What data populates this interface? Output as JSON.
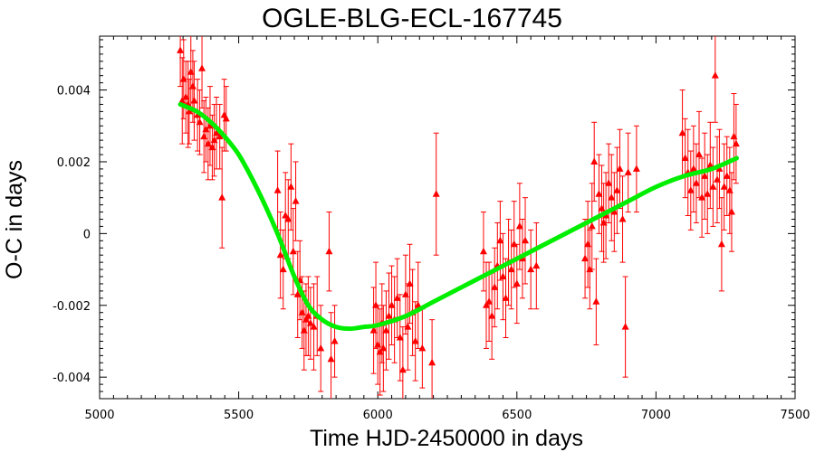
{
  "chart_data": {
    "type": "scatter",
    "title": "OGLE-BLG-ECL-167745",
    "xlabel": "Time HJD-2450000 in days",
    "ylabel": "O-C in days",
    "xlim": [
      5000,
      7500
    ],
    "ylim": [
      -0.0046,
      0.0055
    ],
    "x_ticks": [
      5000,
      5500,
      6000,
      6500,
      7000,
      7500
    ],
    "x_tick_labels": [
      "5000",
      "5500",
      "6000",
      "6500",
      "7000",
      "7500"
    ],
    "y_ticks": [
      0.004,
      0.002,
      0,
      -0.002,
      -0.004
    ],
    "y_tick_labels": [
      "0.004",
      "0.002",
      "0",
      "-0.002",
      "-0.004"
    ],
    "grid": false,
    "series": [
      {
        "kind": "points_with_errorbars",
        "color": "#ff0000",
        "marker": "triangle",
        "points": [
          [
            5290,
            0.0051,
            0.001
          ],
          [
            5297,
            0.0037,
            0.0012
          ],
          [
            5302,
            0.0043,
            0.0011
          ],
          [
            5310,
            0.0038,
            0.001
          ],
          [
            5318,
            0.0036,
            0.0012
          ],
          [
            5322,
            0.0034,
            0.0009
          ],
          [
            5328,
            0.0045,
            0.0011
          ],
          [
            5335,
            0.0041,
            0.001
          ],
          [
            5340,
            0.0037,
            0.0011
          ],
          [
            5352,
            0.0033,
            0.001
          ],
          [
            5360,
            0.0031,
            0.0009
          ],
          [
            5368,
            0.0046,
            0.0011
          ],
          [
            5375,
            0.0027,
            0.001
          ],
          [
            5382,
            0.0029,
            0.0009
          ],
          [
            5390,
            0.0025,
            0.001
          ],
          [
            5397,
            0.003,
            0.0011
          ],
          [
            5405,
            0.0024,
            0.0009
          ],
          [
            5412,
            0.0026,
            0.001
          ],
          [
            5420,
            0.0028,
            0.001
          ],
          [
            5432,
            0.0027,
            0.0009
          ],
          [
            5440,
            0.001,
            0.0014
          ],
          [
            5448,
            0.0033,
            0.001
          ],
          [
            5455,
            0.0032,
            0.0009
          ],
          [
            5640,
            0.0012,
            0.0011
          ],
          [
            5650,
            -0.0006,
            0.0012
          ],
          [
            5660,
            -0.001,
            0.0011
          ],
          [
            5668,
            0.0005,
            0.0012
          ],
          [
            5678,
            0.0004,
            0.0011
          ],
          [
            5688,
            0.0013,
            0.0012
          ],
          [
            5696,
            -0.0005,
            0.0012
          ],
          [
            5705,
            0.0009,
            0.0011
          ],
          [
            5712,
            -0.0017,
            0.0012
          ],
          [
            5720,
            -0.0013,
            0.0011
          ],
          [
            5728,
            -0.0022,
            0.001
          ],
          [
            5735,
            -0.0027,
            0.0011
          ],
          [
            5742,
            -0.0024,
            0.001
          ],
          [
            5750,
            -0.0023,
            0.0011
          ],
          [
            5758,
            -0.0025,
            0.001
          ],
          [
            5770,
            -0.0026,
            0.0012
          ],
          [
            5782,
            -0.0023,
            0.0011
          ],
          [
            5795,
            -0.0032,
            0.0012
          ],
          [
            5825,
            -0.0005,
            0.0011
          ],
          [
            5832,
            -0.0035,
            0.0013
          ],
          [
            5845,
            -0.003,
            0.001
          ],
          [
            5985,
            -0.0027,
            0.0012
          ],
          [
            5993,
            -0.002,
            0.0012
          ],
          [
            6000,
            -0.0031,
            0.0011
          ],
          [
            6008,
            -0.0033,
            0.0012
          ],
          [
            6015,
            -0.0025,
            0.0011
          ],
          [
            6020,
            -0.0032,
            0.0012
          ],
          [
            6030,
            -0.0027,
            0.0011
          ],
          [
            6040,
            -0.0023,
            0.0012
          ],
          [
            6050,
            -0.002,
            0.0011
          ],
          [
            6060,
            -0.0024,
            0.0012
          ],
          [
            6070,
            -0.0018,
            0.0011
          ],
          [
            6080,
            -0.0029,
            0.0012
          ],
          [
            6090,
            -0.0038,
            0.0012
          ],
          [
            6100,
            -0.0017,
            0.0011
          ],
          [
            6108,
            -0.0026,
            0.0012
          ],
          [
            6115,
            -0.0014,
            0.0011
          ],
          [
            6125,
            -0.0022,
            0.0012
          ],
          [
            6135,
            -0.003,
            0.0011
          ],
          [
            6145,
            -0.002,
            0.0012
          ],
          [
            6160,
            -0.0032,
            0.0011
          ],
          [
            6195,
            -0.0036,
            0.0012
          ],
          [
            6210,
            0.0011,
            0.0017
          ],
          [
            6380,
            -0.0005,
            0.0011
          ],
          [
            6390,
            -0.002,
            0.0012
          ],
          [
            6400,
            -0.0019,
            0.0011
          ],
          [
            6410,
            -0.0023,
            0.0012
          ],
          [
            6420,
            -0.0015,
            0.0011
          ],
          [
            6430,
            -0.0009,
            0.0012
          ],
          [
            6440,
            -0.0002,
            0.0011
          ],
          [
            6450,
            -0.0012,
            0.0012
          ],
          [
            6460,
            -0.0018,
            0.0011
          ],
          [
            6470,
            -0.0008,
            0.0012
          ],
          [
            6480,
            -0.001,
            0.0011
          ],
          [
            6490,
            -0.0003,
            0.0012
          ],
          [
            6500,
            -0.0014,
            0.0011
          ],
          [
            6510,
            0.0002,
            0.0012
          ],
          [
            6520,
            -0.0007,
            0.0011
          ],
          [
            6530,
            -0.0002,
            0.0012
          ],
          [
            6550,
            -0.001,
            0.0011
          ],
          [
            6570,
            -0.0009,
            0.0012
          ],
          [
            6745,
            -0.0007,
            0.0011
          ],
          [
            6755,
            -0.0003,
            0.0012
          ],
          [
            6762,
            -0.001,
            0.0011
          ],
          [
            6770,
            0.0002,
            0.0012
          ],
          [
            6778,
            0.002,
            0.0011
          ],
          [
            6785,
            -0.0019,
            0.0012
          ],
          [
            6795,
            0.0011,
            0.0011
          ],
          [
            6805,
            0.0007,
            0.0012
          ],
          [
            6812,
            0.0003,
            0.0011
          ],
          [
            6820,
            0.0005,
            0.0012
          ],
          [
            6830,
            0.0014,
            0.0011
          ],
          [
            6840,
            0.001,
            0.0012
          ],
          [
            6850,
            0.0006,
            0.0011
          ],
          [
            6860,
            0.0012,
            0.0012
          ],
          [
            6870,
            0.0018,
            0.0011
          ],
          [
            6880,
            0.0004,
            0.0012
          ],
          [
            6890,
            -0.0026,
            0.0014
          ],
          [
            6900,
            0.0017,
            0.0011
          ],
          [
            6930,
            0.0018,
            0.0012
          ],
          [
            7095,
            0.0028,
            0.0012
          ],
          [
            7105,
            0.0021,
            0.0011
          ],
          [
            7115,
            0.0017,
            0.0012
          ],
          [
            7125,
            0.0012,
            0.0011
          ],
          [
            7135,
            0.0018,
            0.0012
          ],
          [
            7145,
            0.0014,
            0.0011
          ],
          [
            7155,
            0.0022,
            0.0012
          ],
          [
            7165,
            0.001,
            0.0011
          ],
          [
            7175,
            0.0016,
            0.0012
          ],
          [
            7185,
            0.0011,
            0.0011
          ],
          [
            7195,
            0.0019,
            0.0012
          ],
          [
            7205,
            0.0013,
            0.0011
          ],
          [
            7213,
            0.0044,
            0.0013
          ],
          [
            7220,
            0.0015,
            0.0012
          ],
          [
            7228,
            0.0018,
            0.0011
          ],
          [
            7236,
            -0.0003,
            0.0013
          ],
          [
            7245,
            0.0013,
            0.0012
          ],
          [
            7255,
            0.0016,
            0.0011
          ],
          [
            7265,
            0.0012,
            0.0012
          ],
          [
            7272,
            0.0006,
            0.0011
          ],
          [
            7280,
            0.0027,
            0.0012
          ],
          [
            7288,
            0.0025,
            0.0011
          ]
        ]
      },
      {
        "kind": "fit_curve",
        "color": "#00ee00",
        "points": [
          [
            5290,
            0.0036
          ],
          [
            5350,
            0.0034
          ],
          [
            5400,
            0.0031
          ],
          [
            5450,
            0.0027
          ],
          [
            5500,
            0.0022
          ],
          [
            5550,
            0.0015
          ],
          [
            5600,
            0.0007
          ],
          [
            5650,
            -0.0002
          ],
          [
            5700,
            -0.0012
          ],
          [
            5750,
            -0.002
          ],
          [
            5800,
            -0.0024
          ],
          [
            5850,
            -0.0026
          ],
          [
            5900,
            -0.00265
          ],
          [
            5950,
            -0.0026
          ],
          [
            6000,
            -0.00255
          ],
          [
            6100,
            -0.0023
          ],
          [
            6200,
            -0.0019
          ],
          [
            6300,
            -0.0015
          ],
          [
            6400,
            -0.0011
          ],
          [
            6500,
            -0.0007
          ],
          [
            6600,
            -0.0003
          ],
          [
            6700,
            0.0001
          ],
          [
            6800,
            0.0005
          ],
          [
            6900,
            0.0009
          ],
          [
            7000,
            0.0013
          ],
          [
            7100,
            0.0016
          ],
          [
            7200,
            0.0018
          ],
          [
            7290,
            0.0021
          ]
        ]
      }
    ]
  }
}
